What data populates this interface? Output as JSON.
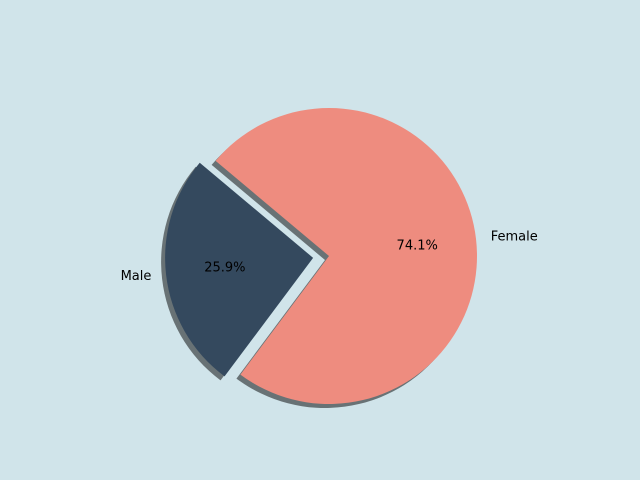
{
  "chart_data": {
    "type": "pie",
    "title": "",
    "slices": [
      {
        "label": "Male",
        "value": 25.9,
        "pct_label": "25.9%",
        "color": "#34495e",
        "exploded": true
      },
      {
        "label": "Female",
        "value": 74.1,
        "pct_label": "74.1%",
        "color": "#ee8c7f",
        "exploded": false
      }
    ],
    "start_angle_deg": 140,
    "shadow": true,
    "background": "#d0e4ea"
  }
}
